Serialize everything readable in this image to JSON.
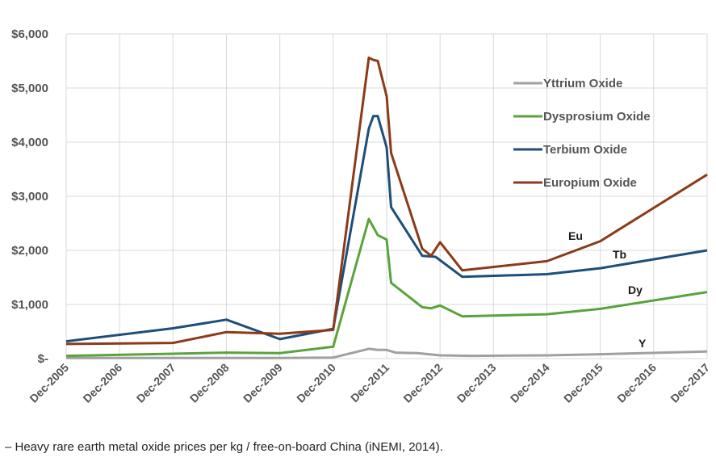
{
  "chart_data": {
    "type": "line",
    "title": "",
    "xlabel": "",
    "ylabel": "",
    "x_ticks": [
      "Dec-2005",
      "Dec-2006",
      "Dec-2007",
      "Dec-2008",
      "Dec-2009",
      "Dec-2010",
      "Dec-2011",
      "Dec-2012",
      "Dec-2013",
      "Dec-2014",
      "Dec-2015",
      "Dec-2016",
      "Dec-2017"
    ],
    "xlim": [
      2005.917,
      2017.917
    ],
    "y_ticks": [
      "$-",
      "$1,000",
      "$2,000",
      "$3,000",
      "$4,000",
      "$5,000",
      "$6,000"
    ],
    "ylim": [
      0,
      6000
    ],
    "grid": true,
    "legend_position": "top-right",
    "series": [
      {
        "name": "Yttrium Oxide",
        "color": "#a0a0a0",
        "label": "Y",
        "points": [
          [
            2005.917,
            10
          ],
          [
            2007.917,
            10
          ],
          [
            2009.917,
            10
          ],
          [
            2010.917,
            20
          ],
          [
            2011.583,
            180
          ],
          [
            2011.75,
            160
          ],
          [
            2011.917,
            160
          ],
          [
            2012.083,
            110
          ],
          [
            2012.5,
            100
          ],
          [
            2012.917,
            60
          ],
          [
            2013.5,
            50
          ],
          [
            2014.917,
            60
          ],
          [
            2015.917,
            80
          ],
          [
            2017.917,
            130
          ]
        ]
      },
      {
        "name": "Dysprosium Oxide",
        "color": "#5aa33c",
        "label": "Dy",
        "points": [
          [
            2005.917,
            50
          ],
          [
            2007.917,
            90
          ],
          [
            2008.917,
            110
          ],
          [
            2009.917,
            100
          ],
          [
            2010.917,
            220
          ],
          [
            2011.583,
            2580
          ],
          [
            2011.75,
            2280
          ],
          [
            2011.917,
            2200
          ],
          [
            2012.0,
            1400
          ],
          [
            2012.583,
            950
          ],
          [
            2012.75,
            930
          ],
          [
            2012.917,
            980
          ],
          [
            2013.333,
            780
          ],
          [
            2014.917,
            820
          ],
          [
            2015.917,
            920
          ],
          [
            2017.917,
            1230
          ]
        ]
      },
      {
        "name": "Terbium Oxide",
        "color": "#1f4e79",
        "label": "Tb",
        "points": [
          [
            2005.917,
            320
          ],
          [
            2007.917,
            560
          ],
          [
            2008.917,
            720
          ],
          [
            2009.917,
            360
          ],
          [
            2010.917,
            550
          ],
          [
            2011.583,
            4250
          ],
          [
            2011.667,
            4480
          ],
          [
            2011.75,
            4480
          ],
          [
            2011.917,
            3900
          ],
          [
            2012.0,
            2800
          ],
          [
            2012.583,
            1900
          ],
          [
            2012.833,
            1880
          ],
          [
            2013.333,
            1510
          ],
          [
            2014.917,
            1560
          ],
          [
            2015.917,
            1670
          ],
          [
            2017.917,
            2000
          ]
        ]
      },
      {
        "name": "Europium Oxide",
        "color": "#8b3a1a",
        "label": "Eu",
        "points": [
          [
            2005.917,
            270
          ],
          [
            2007.917,
            290
          ],
          [
            2008.917,
            490
          ],
          [
            2009.917,
            460
          ],
          [
            2010.917,
            530
          ],
          [
            2011.583,
            5560
          ],
          [
            2011.667,
            5520
          ],
          [
            2011.75,
            5500
          ],
          [
            2011.917,
            4850
          ],
          [
            2012.0,
            3800
          ],
          [
            2012.583,
            2030
          ],
          [
            2012.75,
            1900
          ],
          [
            2012.917,
            2150
          ],
          [
            2013.333,
            1630
          ],
          [
            2014.917,
            1800
          ],
          [
            2015.917,
            2170
          ],
          [
            2017.917,
            3400
          ]
        ]
      }
    ]
  },
  "caption": "– Heavy rare earth metal oxide prices per kg / free-on-board China (iNEMI, 2014)."
}
